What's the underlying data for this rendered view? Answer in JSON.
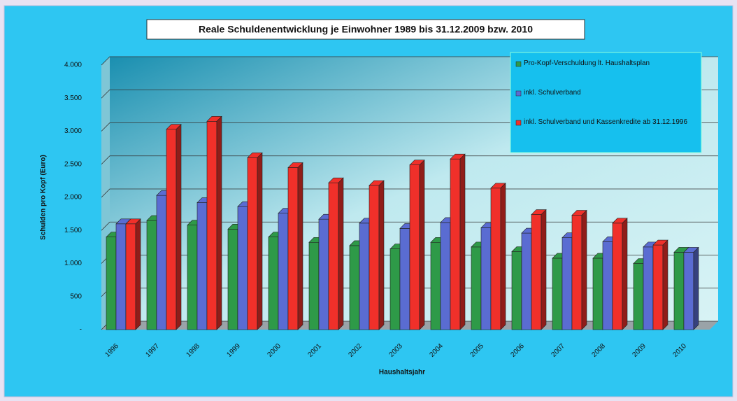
{
  "chart_data": {
    "type": "bar3d",
    "title": "Reale Schuldenentwicklung je Einwohner 1989 bis 31.12.2009 bzw. 2010",
    "x_label": "Haushaltsjahr",
    "y_label": "Schulden pro Kopf (Euro)",
    "categories": [
      "1996",
      "1997",
      "1998",
      "1999",
      "2000",
      "2001",
      "2002",
      "2003",
      "2004",
      "2005",
      "2006",
      "2007",
      "2008",
      "2009",
      "2010"
    ],
    "series": [
      {
        "name": "Pro-Kopf-Verschuldung lt. Haushaltsplan",
        "color": "#2e9a48",
        "values": [
          1400,
          1650,
          1580,
          1520,
          1400,
          1320,
          1270,
          1220,
          1320,
          1250,
          1180,
          1080,
          1080,
          1000,
          1170
        ]
      },
      {
        "name": "inkl. Schulverband",
        "color": "#5a6cd2",
        "values": [
          1600,
          2030,
          1920,
          1860,
          1760,
          1670,
          1610,
          1530,
          1620,
          1540,
          1460,
          1390,
          1330,
          1250,
          1170
        ]
      },
      {
        "name": "inkl. Schulverband und Kassenkredite ab 31.12.1996",
        "color": "#f0302a",
        "values": [
          1600,
          3030,
          3150,
          2600,
          2450,
          2220,
          2180,
          2490,
          2580,
          2140,
          1740,
          1730,
          1610,
          1280,
          null
        ]
      }
    ],
    "ylim": [
      0,
      4000
    ],
    "yticks": [
      {
        "value": 0,
        "label": "-"
      },
      {
        "value": 500,
        "label": "500"
      },
      {
        "value": 1000,
        "label": "1.000"
      },
      {
        "value": 1500,
        "label": "1.500"
      },
      {
        "value": 2000,
        "label": "2.000"
      },
      {
        "value": 2500,
        "label": "2.500"
      },
      {
        "value": 3000,
        "label": "3.000"
      },
      {
        "value": 3500,
        "label": "3.500"
      },
      {
        "value": 4000,
        "label": "4.000"
      }
    ],
    "grid": true,
    "legend": "top-right"
  }
}
